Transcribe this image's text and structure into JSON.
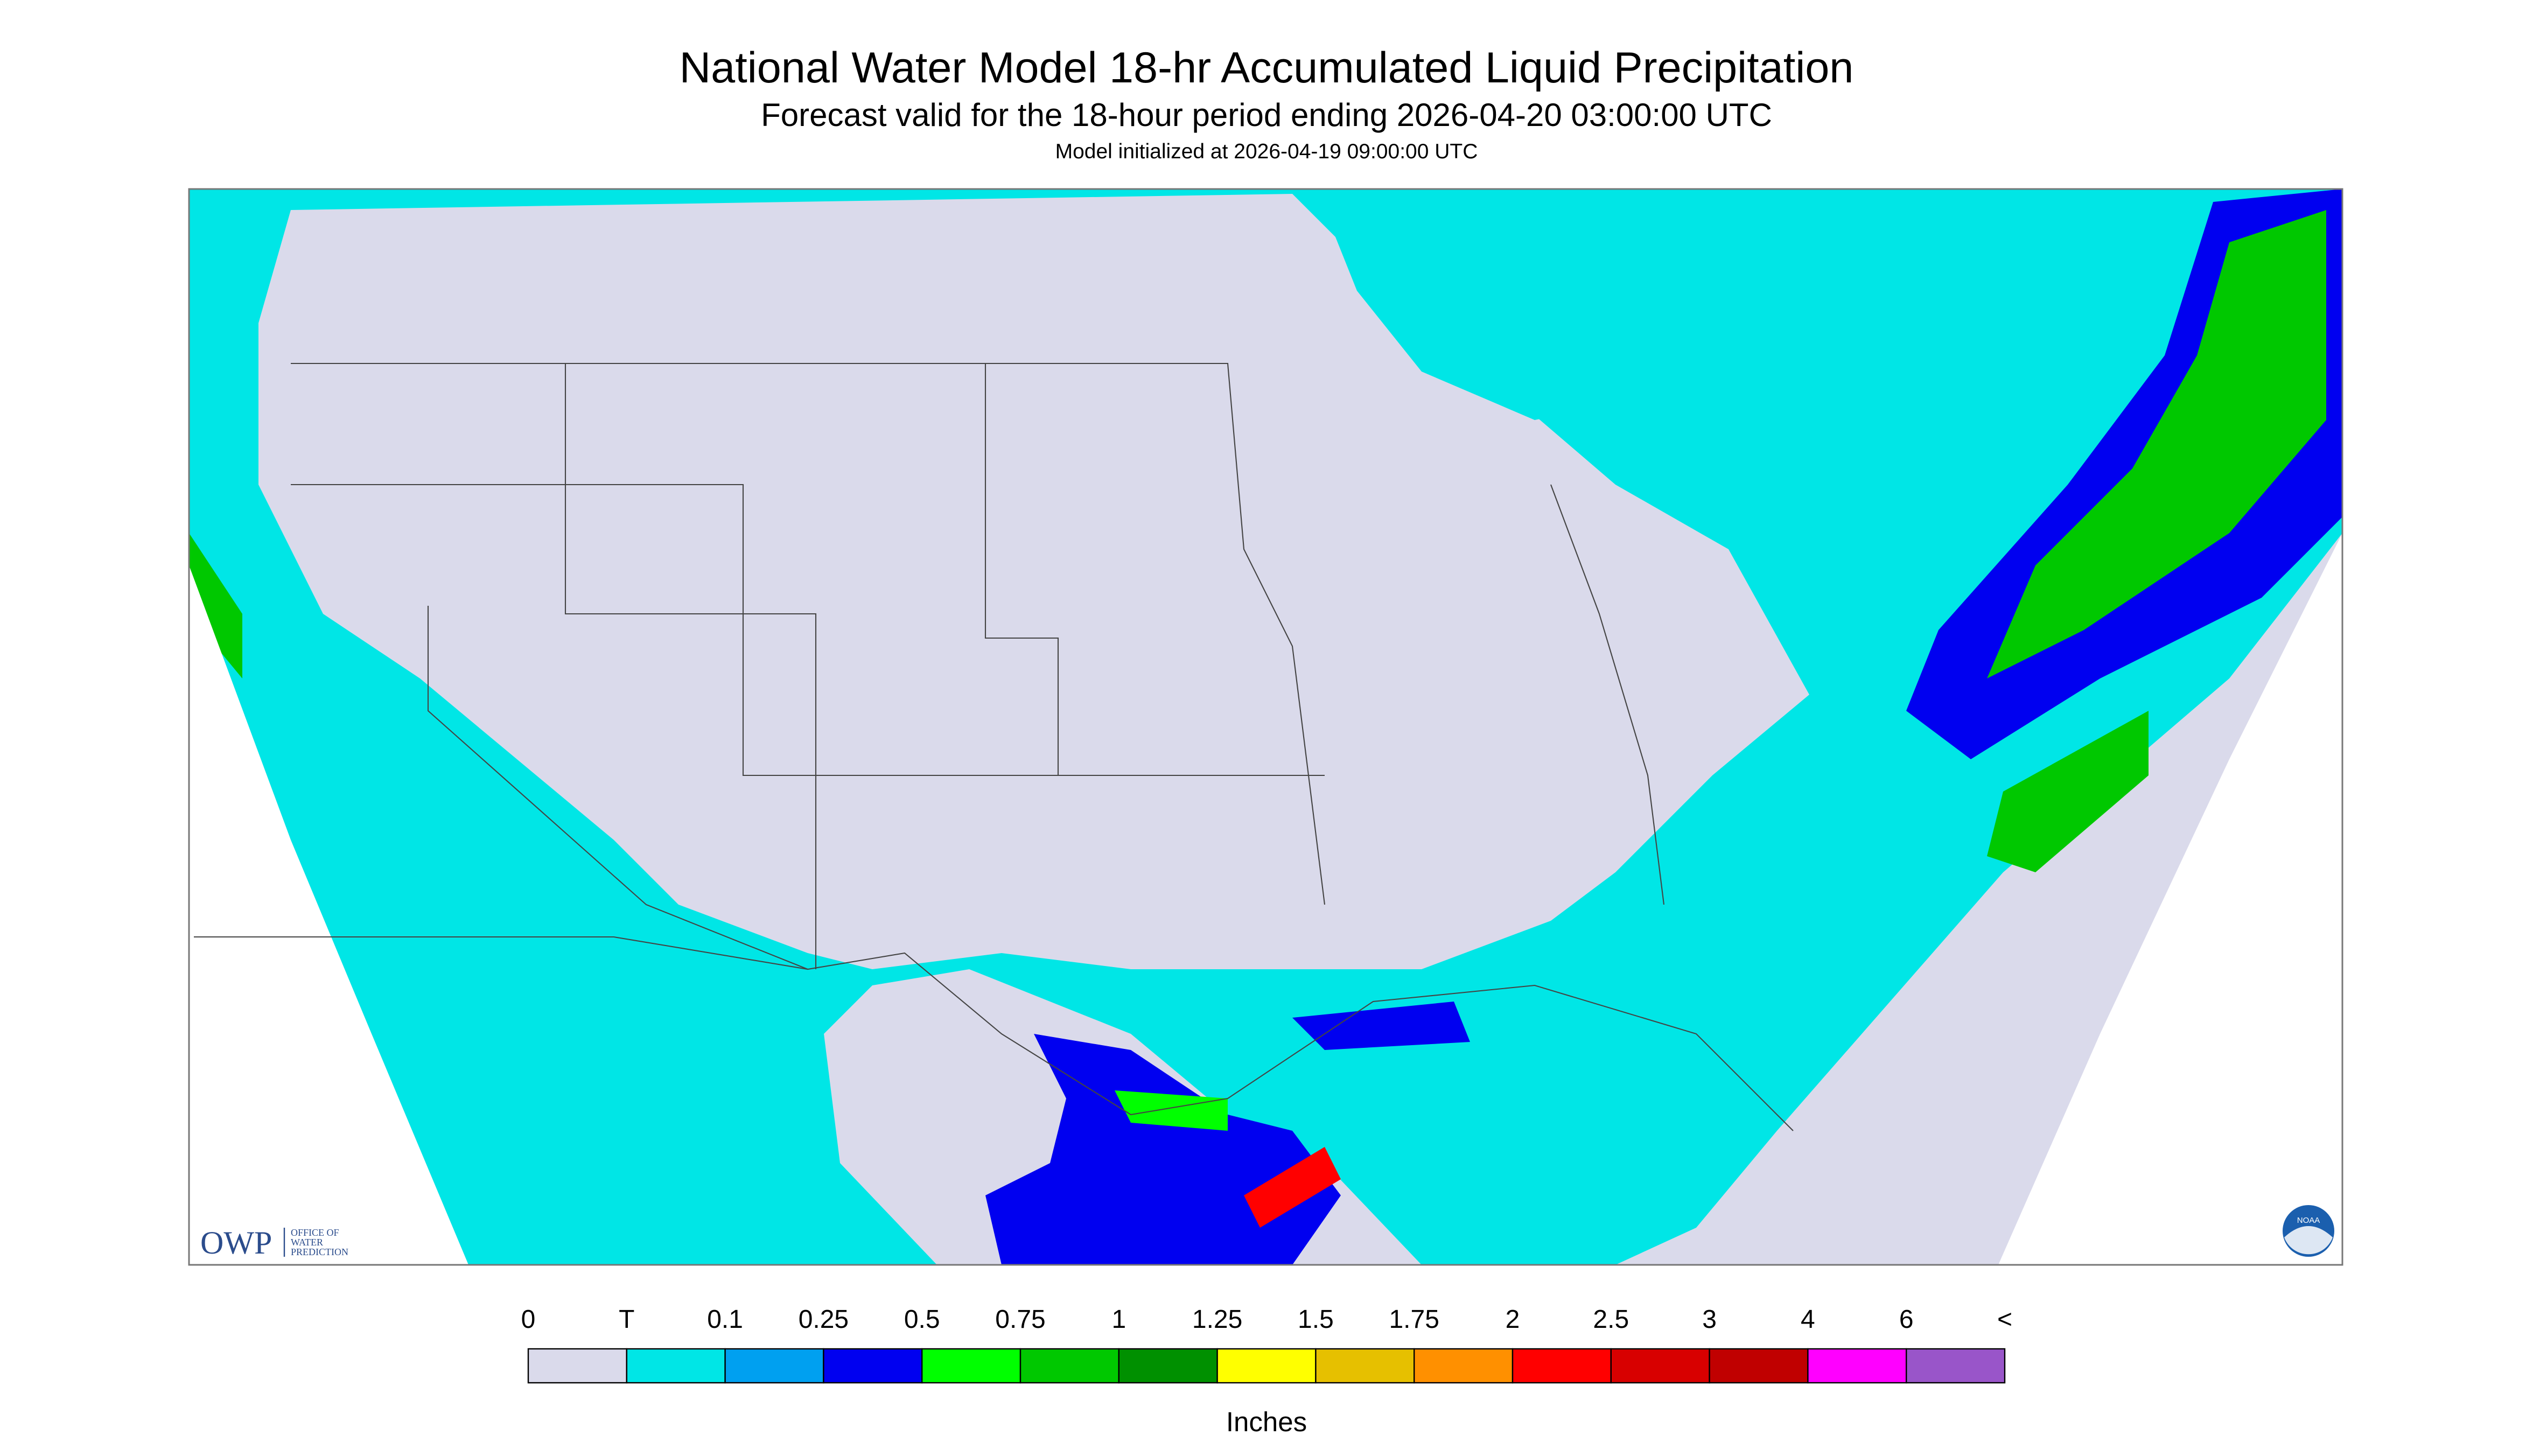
{
  "header": {
    "title": "National Water Model 18-hr Accumulated Liquid Precipitation",
    "subtitle": "Forecast valid for the 18-hour period ending 2026-04-20 03:00:00 UTC",
    "init": "Model initialized at 2026-04-19 09:00:00 UTC"
  },
  "logos": {
    "owp": "OWP",
    "owp_text": [
      "OFFICE OF",
      "WATER",
      "PREDICTION"
    ],
    "noaa": "NOAA"
  },
  "legend": {
    "labels": [
      "0",
      "T",
      "0.1",
      "0.25",
      "0.5",
      "0.75",
      "1",
      "1.25",
      "1.5",
      "1.75",
      "2",
      "2.5",
      "3",
      "4",
      "6",
      "<"
    ],
    "colors": [
      "#dadaeb",
      "#00e6e6",
      "#00a0f0",
      "#0000f0",
      "#00ff00",
      "#00c800",
      "#009000",
      "#ffff00",
      "#e6c000",
      "#ff9000",
      "#ff0000",
      "#d80000",
      "#c00000",
      "#ff00ff",
      "#9955c9"
    ],
    "unit": "Inches"
  }
}
